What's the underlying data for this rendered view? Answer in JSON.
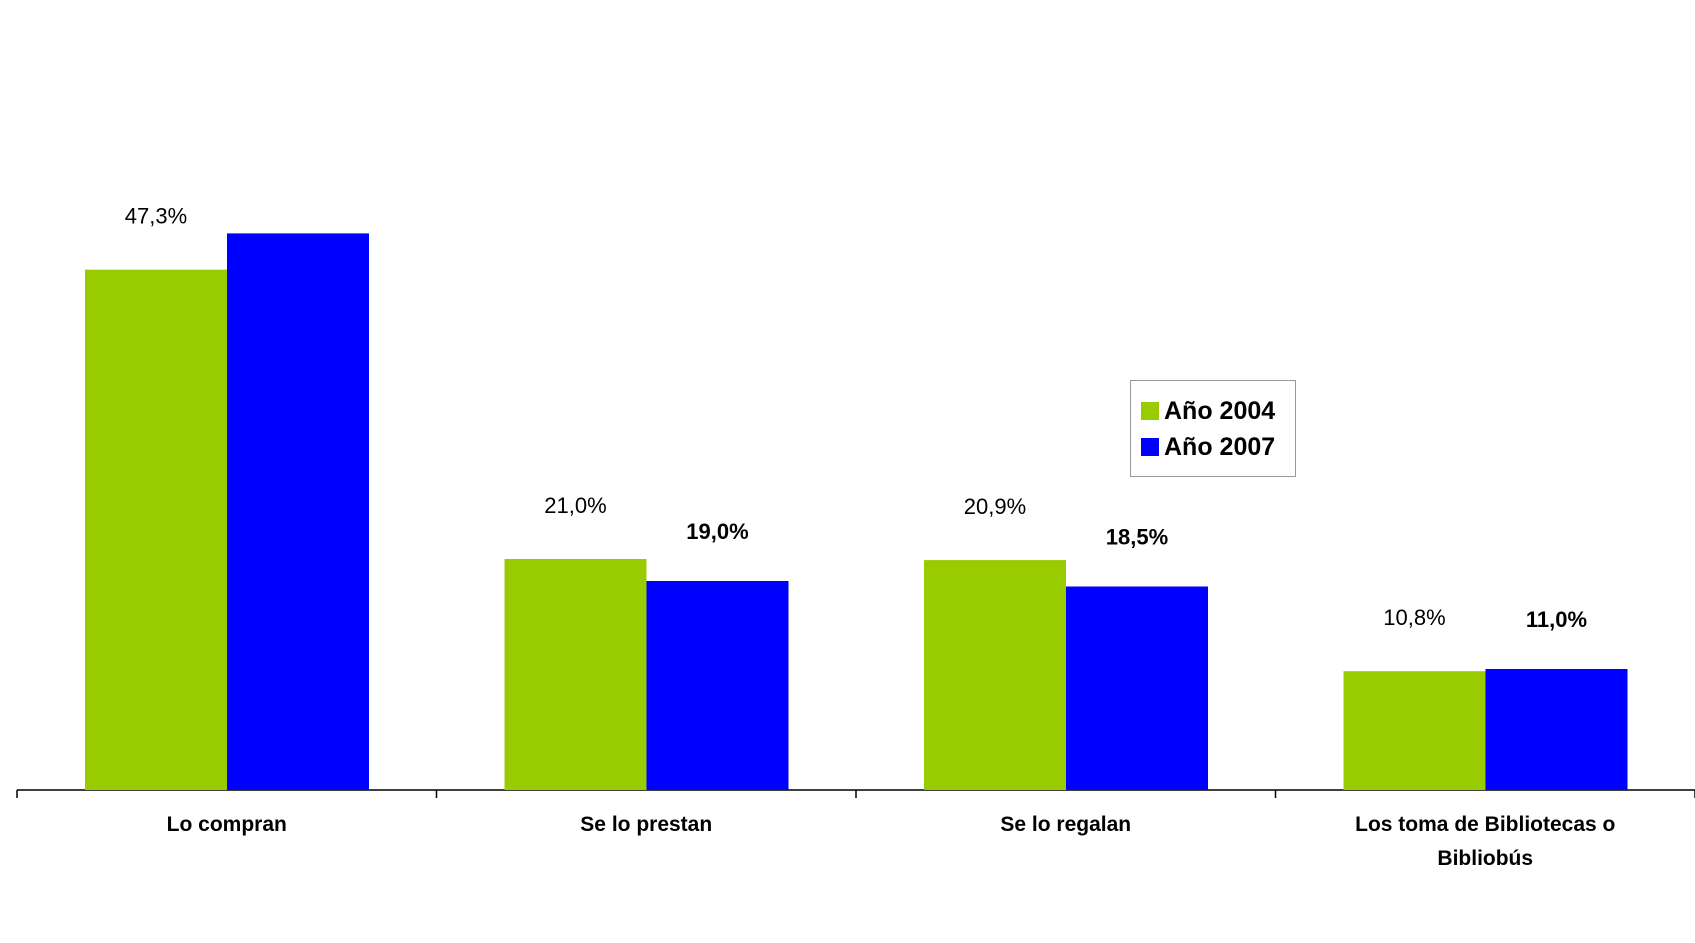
{
  "chart_data": {
    "type": "bar",
    "categories": [
      "Lo compran",
      "Se lo prestan",
      "Se lo regalan",
      "Los toma de Bibliotecas o Bibliobús"
    ],
    "series": [
      {
        "name": "Año 2004",
        "color": "#99cc00",
        "values": [
          47.3,
          21.0,
          20.9,
          10.8
        ],
        "value_labels": [
          "47,3%",
          "21,0%",
          "20,9%",
          "10,8%"
        ]
      },
      {
        "name": "Año 2007",
        "color": "#0000ff",
        "values": [
          50.6,
          19.0,
          18.5,
          11.0
        ],
        "value_labels": [
          null,
          "19,0%",
          "18,5%",
          "11,0%"
        ]
      }
    ]
  }
}
